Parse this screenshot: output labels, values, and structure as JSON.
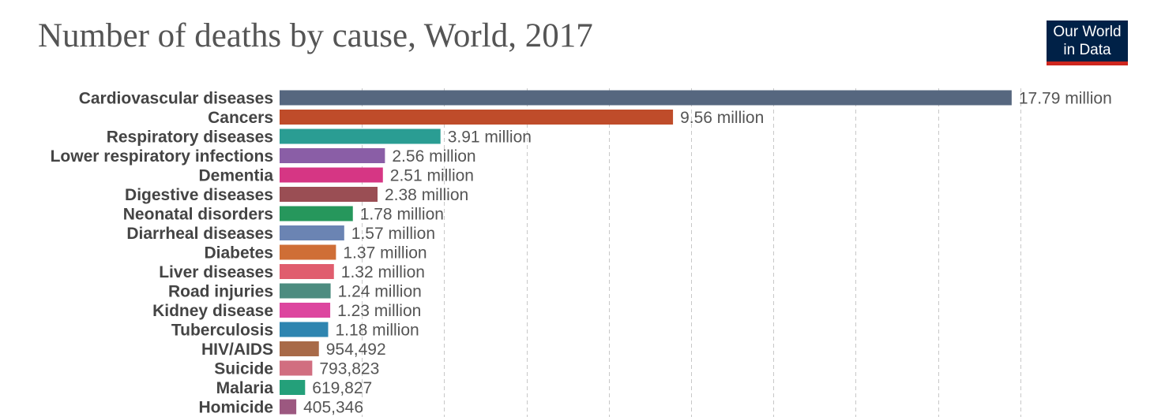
{
  "header": {
    "title": "Number of deaths by cause, World, 2017"
  },
  "logo": {
    "line1": "Our World",
    "line2": "in Data",
    "background": "#002147",
    "accent": "#ce261e"
  },
  "chart_data": {
    "type": "bar",
    "orientation": "horizontal",
    "title": "Number of deaths by cause, World, 2017",
    "xlabel": "",
    "ylabel": "",
    "xlim": [
      0,
      18000000
    ],
    "grid": true,
    "grid_step": 2000000,
    "categories": [
      "Cardiovascular diseases",
      "Cancers",
      "Respiratory diseases",
      "Lower respiratory infections",
      "Dementia",
      "Digestive diseases",
      "Neonatal disorders",
      "Diarrheal diseases",
      "Diabetes",
      "Liver diseases",
      "Road injuries",
      "Kidney disease",
      "Tuberculosis",
      "HIV/AIDS",
      "Suicide",
      "Malaria",
      "Homicide"
    ],
    "values": [
      17790000,
      9560000,
      3910000,
      2560000,
      2510000,
      2380000,
      1780000,
      1570000,
      1370000,
      1320000,
      1240000,
      1230000,
      1180000,
      954492,
      793823,
      619827,
      405346
    ],
    "value_labels": [
      "17.79 million",
      "9.56 million",
      "3.91 million",
      "2.56 million",
      "2.51 million",
      "2.38 million",
      "1.78 million",
      "1.57 million",
      "1.37 million",
      "1.32 million",
      "1.24 million",
      "1.23 million",
      "1.18 million",
      "954,492",
      "793,823",
      "619,827",
      "405,346"
    ],
    "colors": [
      "#56677f",
      "#bf4c2a",
      "#2a9d93",
      "#8a5ea6",
      "#d63684",
      "#9a4e54",
      "#26975c",
      "#6b84b3",
      "#cf6e36",
      "#e05d6e",
      "#4d8c80",
      "#dd469f",
      "#2e85b0",
      "#a86a48",
      "#d16e80",
      "#24a07a",
      "#9c5880"
    ]
  }
}
